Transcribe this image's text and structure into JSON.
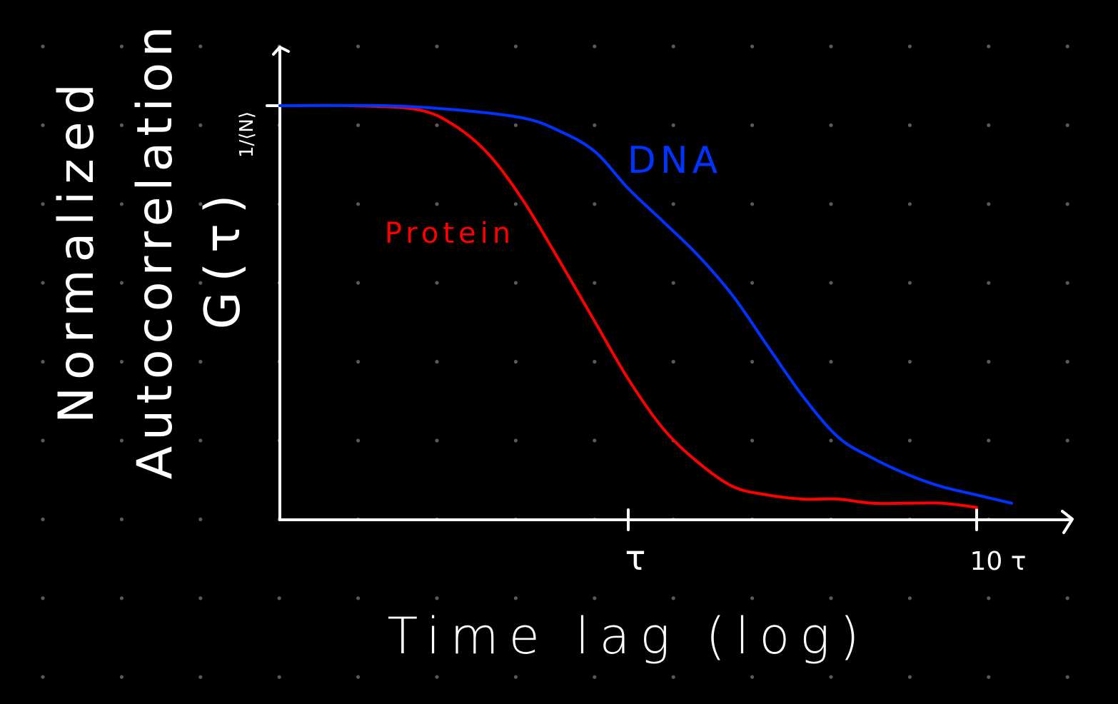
{
  "background": "#000000",
  "grid_dot_color": "#5a5a5a",
  "axis_color": "#ffffff",
  "chart_data": {
    "type": "line",
    "xlabel": "Time lag (log)",
    "ylabel_lines": [
      "Normalized",
      "Autocorrelation",
      "G(τ)"
    ],
    "x_scale": "log",
    "xlim": [
      0.1,
      10
    ],
    "ylim": [
      0,
      1
    ],
    "x_ticks": [
      {
        "value": 1,
        "label": "τ"
      },
      {
        "value": 10,
        "label": "10 τ"
      }
    ],
    "y_ticks": [
      {
        "value": 1,
        "label": "1/⟨N⟩"
      }
    ],
    "series": [
      {
        "name": "Protein",
        "color": "#ff0000",
        "x": [
          0.1,
          0.16,
          0.25,
          0.32,
          0.4,
          0.5,
          0.63,
          0.8,
          1.0,
          1.26,
          1.58,
          2.0,
          2.51,
          3.16,
          4.0,
          5.0,
          6.31,
          7.94,
          10.0
        ],
        "y": [
          1.0,
          1.0,
          0.99,
          0.95,
          0.88,
          0.77,
          0.63,
          0.48,
          0.34,
          0.22,
          0.14,
          0.08,
          0.06,
          0.05,
          0.05,
          0.04,
          0.04,
          0.04,
          0.03
        ]
      },
      {
        "name": "DNA",
        "color": "#0033ff",
        "x": [
          0.1,
          0.2,
          0.32,
          0.5,
          0.63,
          0.8,
          1.0,
          1.26,
          1.58,
          2.0,
          2.51,
          3.16,
          4.0,
          5.0,
          6.31,
          7.94,
          10.0,
          12.6
        ],
        "y": [
          1.0,
          1.0,
          0.99,
          0.97,
          0.94,
          0.89,
          0.8,
          0.72,
          0.64,
          0.54,
          0.42,
          0.3,
          0.2,
          0.15,
          0.11,
          0.08,
          0.06,
          0.04
        ]
      }
    ]
  }
}
